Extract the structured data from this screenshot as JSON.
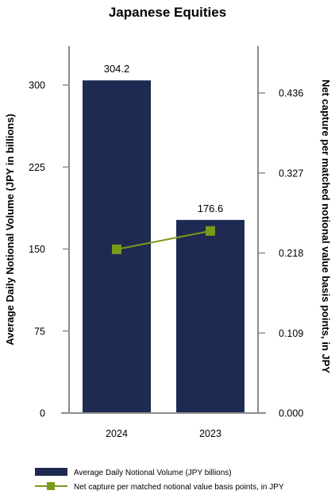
{
  "chart_data": {
    "type": "bar",
    "title": "Japanese Equities",
    "categories": [
      "2024",
      "2023"
    ],
    "ylabel": "Average Daily Notional Volume (JPY in billions)",
    "y2label": "Net capture per matched notional value basis points, in JPY",
    "ylim": [
      0,
      300
    ],
    "y2lim": [
      0,
      0.436
    ],
    "yticks": [
      "0",
      "75",
      "150",
      "225",
      "300"
    ],
    "y2ticks": [
      "0.000",
      "0.109",
      "0.218",
      "0.327",
      "0.436"
    ],
    "grid": false,
    "legend_position": "bottom",
    "series": [
      {
        "name": "Average Daily Notional Volume (JPY billions)",
        "type": "bar",
        "axis": "left",
        "values": [
          304.2,
          176.6
        ],
        "data_labels": [
          "304.2",
          "176.6"
        ]
      },
      {
        "name": "Net capture per matched notional value basis points, in JPY",
        "type": "line",
        "axis": "right",
        "values": [
          0.223,
          0.248
        ]
      }
    ],
    "colors": {
      "bar": "#1f2a52",
      "line": "#7a9a1a",
      "axis": "#8c8c8c"
    }
  }
}
